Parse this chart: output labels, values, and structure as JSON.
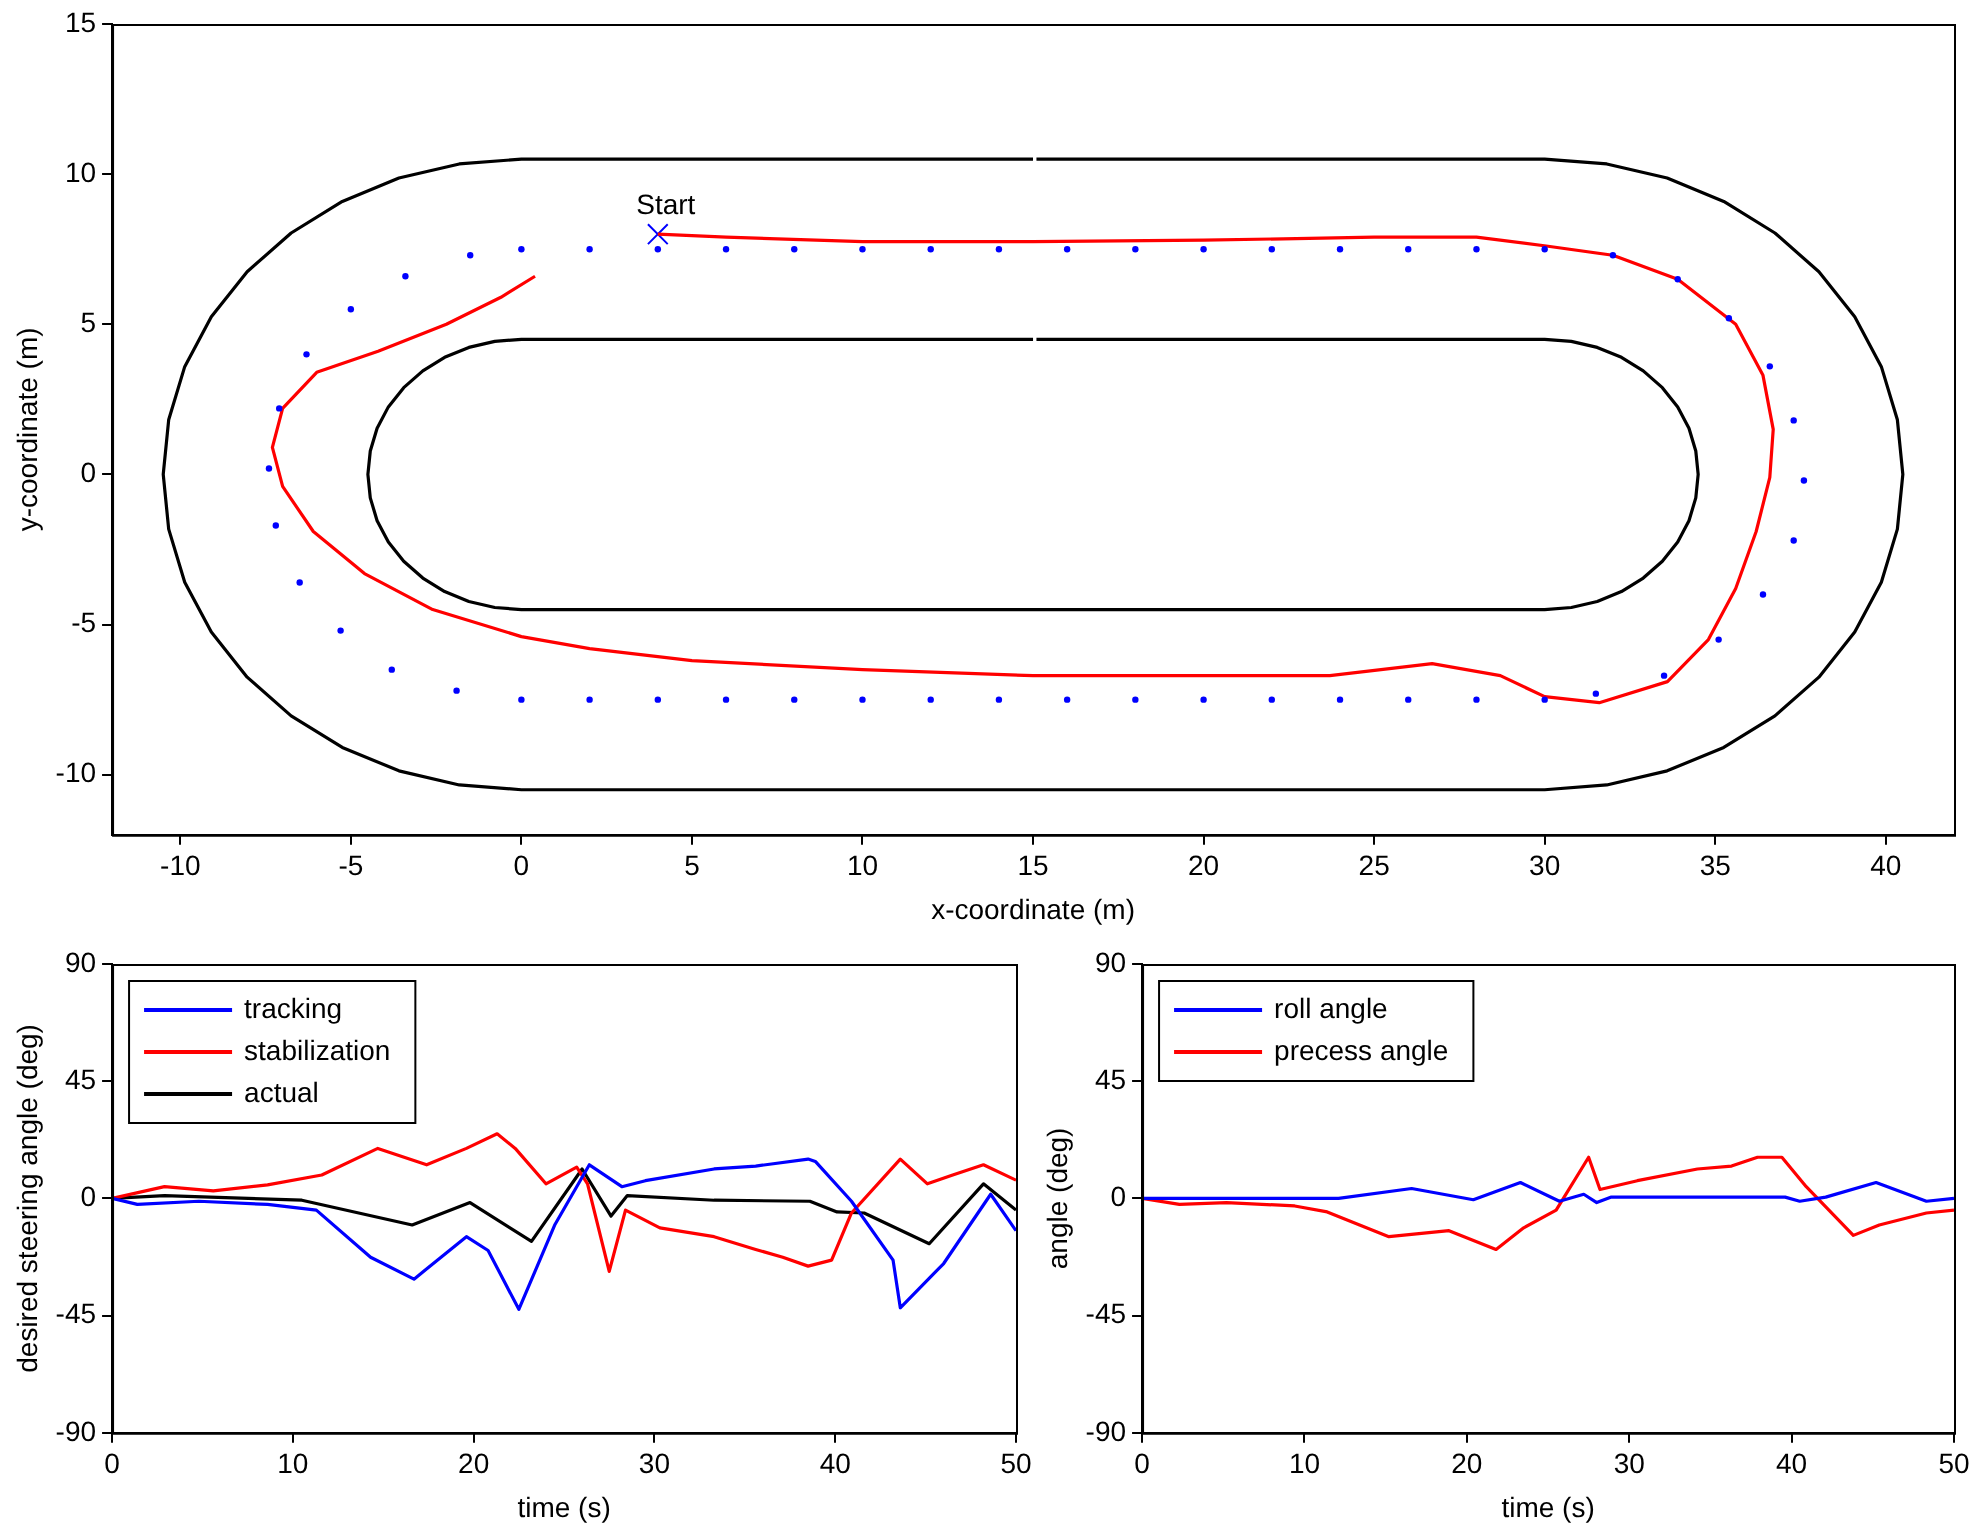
{
  "chart_data": [
    {
      "type": "line",
      "xlabel": "x-coordinate (m)",
      "ylabel": "y-coordinate (m)",
      "xlim": [
        -12,
        42
      ],
      "xticks": [
        -10,
        -5,
        0,
        5,
        10,
        15,
        20,
        25,
        30,
        35,
        40
      ],
      "ylim": [
        -12,
        15
      ],
      "yticks": [
        -10,
        -5,
        0,
        5,
        10,
        15
      ],
      "grid": false,
      "legend": false,
      "annotations": [
        {
          "text": "Start",
          "x": 4,
          "y": 8
        }
      ],
      "series": [
        {
          "type": "line",
          "color": "#000000",
          "marker": "none",
          "x": [
            15,
            0,
            -1.82,
            -3.59,
            -5.25,
            -6.75,
            -8.04,
            -9.09,
            -9.87,
            -10.34,
            -10.5,
            -10.34,
            -9.87,
            -9.09,
            -8.04,
            -6.75,
            -5.25,
            -3.59,
            -1.82,
            0,
            30,
            31.82,
            33.59,
            35.25,
            36.75,
            38.04,
            39.09,
            39.87,
            40.34,
            40.5,
            40.34,
            39.87,
            39.09,
            38.04,
            36.75,
            35.25,
            33.59,
            31.82,
            30,
            15.1
          ],
          "values": [
            10.5,
            10.5,
            10.34,
            9.87,
            9.09,
            8.04,
            6.75,
            5.25,
            3.59,
            1.82,
            0,
            -1.82,
            -3.59,
            -5.25,
            -6.75,
            -8.04,
            -9.09,
            -9.87,
            -10.34,
            -10.5,
            -10.5,
            -10.34,
            -9.87,
            -9.09,
            -8.04,
            -6.75,
            -5.25,
            -3.59,
            -1.82,
            0,
            1.82,
            3.59,
            5.25,
            6.75,
            8.04,
            9.09,
            9.87,
            10.34,
            10.5,
            10.5
          ]
        },
        {
          "type": "line",
          "color": "#000000",
          "marker": "none",
          "x": [
            15,
            0,
            -0.78,
            -1.54,
            -2.25,
            -2.89,
            -3.45,
            -3.9,
            -4.23,
            -4.43,
            -4.5,
            -4.43,
            -4.23,
            -3.9,
            -3.45,
            -2.89,
            -2.25,
            -1.54,
            -0.78,
            0,
            30,
            30.78,
            31.54,
            32.25,
            32.89,
            33.45,
            33.9,
            34.23,
            34.43,
            34.5,
            34.43,
            34.23,
            33.9,
            33.45,
            32.89,
            32.25,
            31.54,
            30.78,
            30,
            15.1
          ],
          "values": [
            4.5,
            4.5,
            4.43,
            4.23,
            3.9,
            3.45,
            2.89,
            2.25,
            1.54,
            0.78,
            0,
            -0.78,
            -1.54,
            -2.25,
            -2.89,
            -3.45,
            -3.9,
            -4.23,
            -4.43,
            -4.5,
            -4.5,
            -4.43,
            -4.23,
            -3.9,
            -3.45,
            -2.89,
            -2.25,
            -1.54,
            -0.78,
            0,
            0.78,
            1.54,
            2.25,
            2.89,
            3.45,
            3.9,
            4.23,
            4.43,
            4.5,
            4.5
          ]
        },
        {
          "type": "scatter",
          "color": "#0000ff",
          "marker": "circle",
          "x": [
            0,
            2,
            4,
            6,
            8,
            10,
            12,
            14,
            16,
            18,
            20,
            22,
            24,
            26,
            28,
            30,
            32,
            33.9,
            35.4,
            36.6,
            37.3,
            37.6,
            37.3,
            36.4,
            35.1,
            33.5,
            31.5,
            30,
            28,
            26,
            24,
            22,
            20,
            18,
            16,
            14,
            12,
            10,
            8,
            6,
            4,
            2,
            0,
            -1.9,
            -3.8,
            -5.3,
            -6.5,
            -7.2,
            -7.4,
            -7.1,
            -6.3,
            -5,
            -3.4,
            -1.5
          ],
          "values": [
            7.5,
            7.5,
            7.5,
            7.5,
            7.5,
            7.5,
            7.5,
            7.5,
            7.5,
            7.5,
            7.5,
            7.5,
            7.5,
            7.5,
            7.5,
            7.5,
            7.3,
            6.5,
            5.2,
            3.6,
            1.8,
            -0.2,
            -2.2,
            -4,
            -5.5,
            -6.7,
            -7.3,
            -7.5,
            -7.5,
            -7.5,
            -7.5,
            -7.5,
            -7.5,
            -7.5,
            -7.5,
            -7.5,
            -7.5,
            -7.5,
            -7.5,
            -7.5,
            -7.5,
            -7.5,
            -7.5,
            -7.2,
            -6.5,
            -5.2,
            -3.6,
            -1.7,
            0.2,
            2.2,
            4,
            5.5,
            6.6,
            7.3
          ]
        },
        {
          "color": "#ff0000",
          "marker": "none",
          "x": [
            4,
            6,
            10,
            15,
            20,
            25,
            28,
            30.1,
            32,
            33.9,
            35.6,
            36.4,
            36.7,
            36.6,
            36.2,
            35.6,
            34.8,
            33.6,
            31.6,
            30,
            28.7,
            26.7,
            23.7,
            20,
            15,
            10,
            5,
            2,
            0,
            -2.6,
            -4.6,
            -6.1,
            -7,
            -7.3,
            -7,
            -6,
            -4.2,
            -2.2,
            -0.6,
            0.4
          ],
          "values": [
            8,
            7.9,
            7.75,
            7.75,
            7.8,
            7.9,
            7.9,
            7.6,
            7.3,
            6.5,
            5,
            3.3,
            1.5,
            -0.1,
            -1.9,
            -3.8,
            -5.5,
            -6.9,
            -7.6,
            -7.4,
            -6.7,
            -6.3,
            -6.7,
            -6.7,
            -6.7,
            -6.5,
            -6.2,
            -5.8,
            -5.4,
            -4.5,
            -3.3,
            -1.9,
            -0.4,
            0.9,
            2.2,
            3.4,
            4.1,
            5,
            5.9,
            6.6
          ]
        },
        {
          "type": "scatter",
          "color": "#0000ff",
          "marker": "cross",
          "x": [
            4
          ],
          "values": [
            8
          ]
        }
      ]
    },
    {
      "type": "line",
      "xlabel": "time (s)",
      "ylabel": "desired steering angle (deg)",
      "xlim": [
        0,
        50
      ],
      "xticks": [
        0,
        10,
        20,
        30,
        40,
        50
      ],
      "ylim": [
        -90,
        90
      ],
      "yticks": [
        -90,
        -45,
        0,
        45,
        90
      ],
      "grid": false,
      "legend": "top left",
      "series": [
        {
          "name": "tracking",
          "color": "#0000ff",
          "x": [
            0,
            1.4,
            4.8,
            8.6,
            11.3,
            14.3,
            16.7,
            19.6,
            20.8,
            22.5,
            24.5,
            26.4,
            28.2,
            29.5,
            33.3,
            35.6,
            38.5,
            38.9,
            40.9,
            43.2,
            43.6,
            46,
            48.6,
            50
          ],
          "values": [
            0,
            -2.3,
            -1.1,
            -2.3,
            -4.5,
            -22.6,
            -31,
            -14.7,
            -20,
            -42.6,
            -10,
            12.9,
            4.5,
            6.8,
            11.3,
            12.4,
            15.1,
            14.2,
            -1.1,
            -23.7,
            -42,
            -25,
            1.6,
            -12.4
          ]
        },
        {
          "name": "stabilization",
          "color": "#ff0000",
          "x": [
            0,
            2.9,
            5.6,
            8.6,
            11.6,
            14.7,
            17.4,
            19.6,
            21.3,
            22.3,
            24,
            25.7,
            26.3,
            27.5,
            28.4,
            30.3,
            33.3,
            35.6,
            37.1,
            38.5,
            39.8,
            40.9,
            43.6,
            45.1,
            46.5,
            48.2,
            50
          ],
          "values": [
            0,
            4.5,
            2.9,
            5.2,
            9,
            19.2,
            12.9,
            19.2,
            24.8,
            19.2,
            5.6,
            12,
            5.6,
            -28,
            -4.5,
            -11.3,
            -14.7,
            -19.6,
            -22.6,
            -26,
            -23.7,
            -5.6,
            15.1,
            5.6,
            9,
            12.9,
            7
          ]
        },
        {
          "name": "actual",
          "color": "#000000",
          "x": [
            0,
            2.9,
            10.5,
            16.6,
            19.8,
            23.2,
            26,
            27.6,
            28.5,
            33.3,
            38.6,
            40.1,
            41.6,
            45.2,
            48.2,
            50
          ],
          "values": [
            0,
            1.1,
            -0.7,
            -10.2,
            -1.6,
            -16.5,
            11.3,
            -6.8,
            1.1,
            -0.7,
            -1.1,
            -5.2,
            -5.6,
            -17.4,
            5.6,
            -4.5
          ]
        }
      ]
    },
    {
      "type": "line",
      "xlabel": "time (s)",
      "ylabel": "angle (deg)",
      "xlim": [
        0,
        50
      ],
      "xticks": [
        0,
        10,
        20,
        30,
        40,
        50
      ],
      "ylim": [
        -90,
        90
      ],
      "yticks": [
        -90,
        -45,
        0,
        45,
        90
      ],
      "grid": false,
      "legend": "top left",
      "series": [
        {
          "name": "roll angle",
          "color": "#0000ff",
          "x": [
            0,
            12.1,
            16.6,
            20.4,
            23.3,
            25.7,
            27.2,
            28,
            28.9,
            39.6,
            40.5,
            42.1,
            45.2,
            48.3,
            50
          ],
          "values": [
            0,
            0,
            3.8,
            -0.5,
            6.1,
            -1.1,
            1.6,
            -1.6,
            0.5,
            0.5,
            -1.1,
            0.5,
            6.1,
            -1.1,
            0
          ]
        },
        {
          "name": "precess angle",
          "color": "#ff0000",
          "x": [
            0,
            2.3,
            5.2,
            9.4,
            11.4,
            15.2,
            18.9,
            21.8,
            23.5,
            25.5,
            27.5,
            28.2,
            30.5,
            34.2,
            36.3,
            37.9,
            39.4,
            40.9,
            43.8,
            45.4,
            48.3,
            50
          ],
          "values": [
            0,
            -2.3,
            -1.6,
            -2.9,
            -5.2,
            -14.7,
            -12.4,
            -19.6,
            -11.3,
            -4.5,
            15.8,
            3.4,
            6.8,
            11.3,
            12.4,
            15.8,
            15.8,
            4.5,
            -14.2,
            -10.2,
            -5.6,
            -4.5
          ]
        }
      ]
    }
  ]
}
